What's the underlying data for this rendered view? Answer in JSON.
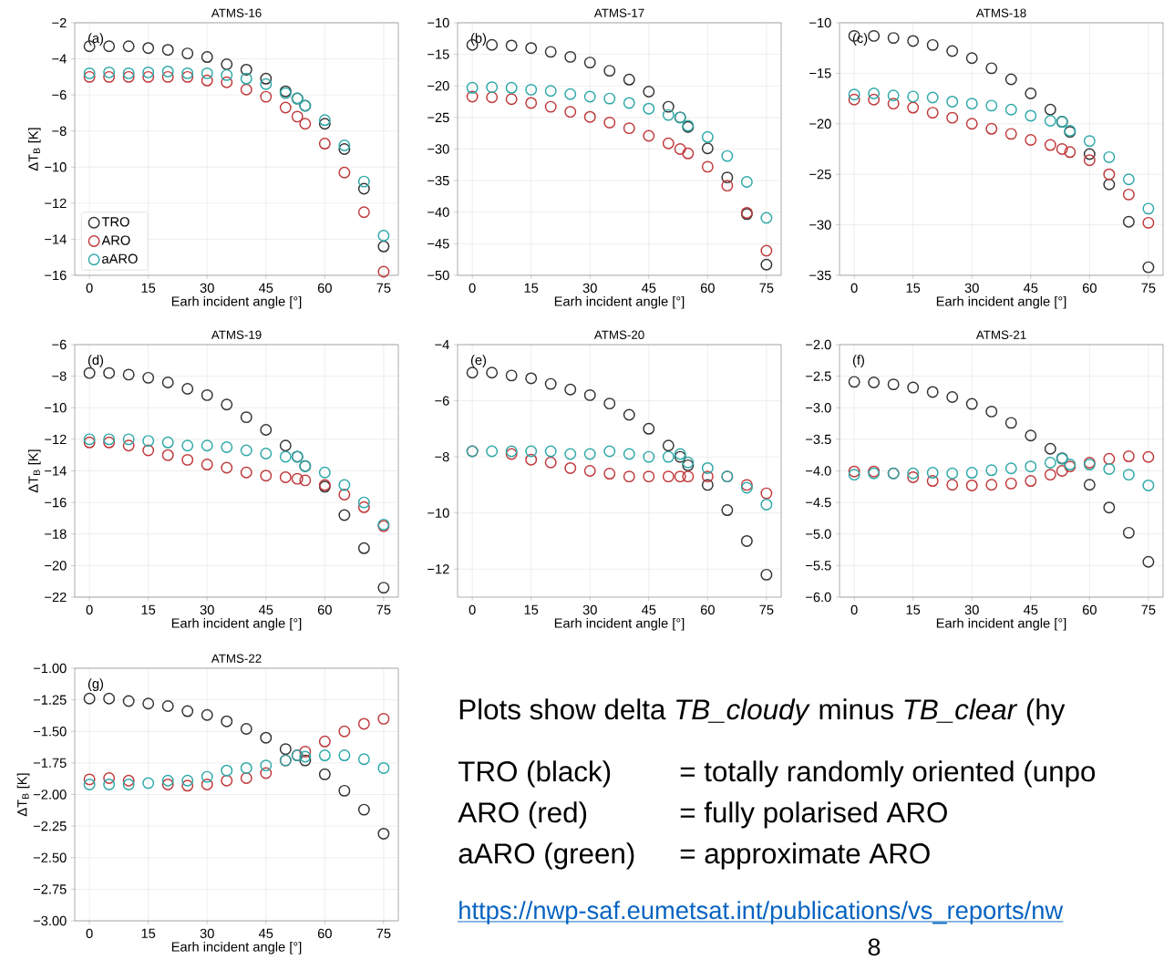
{
  "chart_data": [
    {
      "type": "scatter",
      "title": "ATMS-16",
      "xlabel": "Earh incident angle [°]",
      "ylabel": "ΔT$_{B}$ [K]",
      "marker": "circle",
      "grid": true,
      "legend": "bottom left",
      "annotations": [
        "(a)"
      ],
      "x": [
        0,
        5,
        10,
        15,
        20,
        25,
        30,
        35,
        40,
        45,
        50,
        53,
        55,
        60,
        65,
        70,
        75
      ],
      "xlim": [
        -3.75,
        78.75
      ],
      "xticks": [
        0,
        15,
        30,
        45,
        60,
        75
      ],
      "ylim": [
        -16,
        -2
      ],
      "yticks": [
        {
          "value": -16,
          "label": "−16"
        },
        {
          "value": -14,
          "label": "−14"
        },
        {
          "value": -12,
          "label": "−12"
        },
        {
          "value": -10,
          "label": "−10"
        },
        {
          "value": -8,
          "label": "−8"
        },
        {
          "value": -6,
          "label": "−6"
        },
        {
          "value": -4,
          "label": "−4"
        },
        {
          "value": -2,
          "label": "−2"
        }
      ],
      "series": [
        {
          "name": "TRO",
          "color": "#333333",
          "values": [
            -3.3,
            -3.3,
            -3.3,
            -3.4,
            -3.5,
            -3.7,
            -3.9,
            -4.3,
            -4.6,
            -5.1,
            -5.8,
            -6.2,
            -6.6,
            -7.6,
            -9.0,
            -11.2,
            -14.4
          ]
        },
        {
          "name": "ARO",
          "color": "#c0393b",
          "values": [
            -5.0,
            -5.0,
            -5.0,
            -5.0,
            -5.0,
            -5.0,
            -5.2,
            -5.3,
            -5.7,
            -6.1,
            -6.7,
            -7.2,
            -7.6,
            -8.7,
            -10.3,
            -12.5,
            -15.8
          ]
        },
        {
          "name": "aARO",
          "color": "#2ea8a8",
          "values": [
            -4.8,
            -4.75,
            -4.8,
            -4.75,
            -4.7,
            -4.8,
            -4.8,
            -4.9,
            -5.1,
            -5.4,
            -5.9,
            -6.2,
            -6.6,
            -7.4,
            -8.8,
            -10.8,
            -13.8
          ]
        }
      ]
    },
    {
      "type": "scatter",
      "title": "ATMS-17",
      "xlabel": "Earh incident angle [°]",
      "marker": "circle",
      "grid": true,
      "annotations": [
        "(b)"
      ],
      "x": [
        0,
        5,
        10,
        15,
        20,
        25,
        30,
        35,
        40,
        45,
        50,
        53,
        55,
        60,
        65,
        70,
        75
      ],
      "xlim": [
        -3.75,
        78.75
      ],
      "xticks": [
        0,
        15,
        30,
        45,
        60,
        75
      ],
      "ylim": [
        -50,
        -10
      ],
      "yticks": [
        {
          "value": -50,
          "label": "−50"
        },
        {
          "value": -45,
          "label": "−45"
        },
        {
          "value": -40,
          "label": "−40"
        },
        {
          "value": -35,
          "label": "−35"
        },
        {
          "value": -30,
          "label": "−30"
        },
        {
          "value": -25,
          "label": "−25"
        },
        {
          "value": -20,
          "label": "−20"
        },
        {
          "value": -15,
          "label": "−15"
        },
        {
          "value": -10,
          "label": "−10"
        }
      ],
      "series": [
        {
          "color": "#333333",
          "values": [
            -13.5,
            -13.5,
            -13.6,
            -14.0,
            -14.6,
            -15.4,
            -16.3,
            -17.6,
            -19.0,
            -20.9,
            -23.3,
            -25.0,
            -26.5,
            -29.9,
            -34.5,
            -40.3,
            -48.3
          ]
        },
        {
          "color": "#c0393b",
          "values": [
            -21.7,
            -21.8,
            -22.1,
            -22.7,
            -23.3,
            -24.1,
            -24.9,
            -25.8,
            -26.7,
            -27.9,
            -29.1,
            -30.0,
            -30.7,
            -32.8,
            -35.8,
            -40.1,
            -46.1
          ]
        },
        {
          "color": "#2ea8a8",
          "values": [
            -20.3,
            -20.2,
            -20.3,
            -20.6,
            -20.8,
            -21.3,
            -21.7,
            -22.0,
            -22.7,
            -23.6,
            -24.6,
            -25.0,
            -26.3,
            -28.1,
            -31.1,
            -35.2,
            -40.9
          ]
        }
      ]
    },
    {
      "type": "scatter",
      "title": "ATMS-18",
      "xlabel": "Earh incident angle [°]",
      "marker": "circle",
      "grid": true,
      "annotations": [
        "(c)"
      ],
      "x": [
        0,
        5,
        10,
        15,
        20,
        25,
        30,
        35,
        40,
        45,
        50,
        53,
        55,
        60,
        65,
        70,
        75
      ],
      "xlim": [
        -3.75,
        78.75
      ],
      "xticks": [
        0,
        15,
        30,
        45,
        60,
        75
      ],
      "ylim": [
        -35,
        -10
      ],
      "yticks": [
        {
          "value": -35,
          "label": "−35"
        },
        {
          "value": -30,
          "label": "−30"
        },
        {
          "value": -25,
          "label": "−25"
        },
        {
          "value": -20,
          "label": "−20"
        },
        {
          "value": -15,
          "label": "−15"
        },
        {
          "value": -10,
          "label": "−10"
        }
      ],
      "series": [
        {
          "color": "#333333",
          "values": [
            -11.3,
            -11.3,
            -11.5,
            -11.8,
            -12.2,
            -12.8,
            -13.5,
            -14.5,
            -15.6,
            -17.0,
            -18.6,
            -19.8,
            -20.8,
            -23.0,
            -26.0,
            -29.7,
            -34.2
          ]
        },
        {
          "color": "#c0393b",
          "values": [
            -17.6,
            -17.6,
            -18.0,
            -18.4,
            -18.9,
            -19.4,
            -20.0,
            -20.5,
            -21.0,
            -21.6,
            -22.1,
            -22.5,
            -22.8,
            -23.6,
            -25.0,
            -27.0,
            -29.8
          ]
        },
        {
          "color": "#2ea8a8",
          "values": [
            -17.1,
            -17.0,
            -17.2,
            -17.3,
            -17.4,
            -17.8,
            -18.0,
            -18.2,
            -18.6,
            -19.2,
            -19.7,
            -19.8,
            -20.7,
            -21.7,
            -23.3,
            -25.5,
            -28.4
          ]
        }
      ]
    },
    {
      "type": "scatter",
      "title": "ATMS-19",
      "xlabel": "Earh incident angle [°]",
      "ylabel": "ΔT$_{B}$ [K]",
      "marker": "circle",
      "grid": true,
      "annotations": [
        "(d)"
      ],
      "x": [
        0,
        5,
        10,
        15,
        20,
        25,
        30,
        35,
        40,
        45,
        50,
        53,
        55,
        60,
        65,
        70,
        75
      ],
      "xlim": [
        -3.75,
        78.75
      ],
      "xticks": [
        0,
        15,
        30,
        45,
        60,
        75
      ],
      "ylim": [
        -22,
        -6
      ],
      "yticks": [
        {
          "value": -22,
          "label": "−22"
        },
        {
          "value": -20,
          "label": "−20"
        },
        {
          "value": -18,
          "label": "−18"
        },
        {
          "value": -16,
          "label": "−16"
        },
        {
          "value": -14,
          "label": "−14"
        },
        {
          "value": -12,
          "label": "−12"
        },
        {
          "value": -10,
          "label": "−10"
        },
        {
          "value": -8,
          "label": "−8"
        },
        {
          "value": -6,
          "label": "−6"
        }
      ],
      "series": [
        {
          "color": "#333333",
          "values": [
            -7.8,
            -7.8,
            -7.9,
            -8.1,
            -8.4,
            -8.8,
            -9.2,
            -9.8,
            -10.6,
            -11.4,
            -12.4,
            -13.1,
            -13.7,
            -15.0,
            -16.8,
            -18.9,
            -21.4
          ]
        },
        {
          "color": "#c0393b",
          "values": [
            -12.2,
            -12.2,
            -12.4,
            -12.7,
            -13.0,
            -13.3,
            -13.6,
            -13.8,
            -14.1,
            -14.3,
            -14.4,
            -14.5,
            -14.6,
            -14.9,
            -15.5,
            -16.3,
            -17.5
          ]
        },
        {
          "color": "#2ea8a8",
          "values": [
            -12.0,
            -12.0,
            -12.0,
            -12.1,
            -12.2,
            -12.4,
            -12.4,
            -12.5,
            -12.7,
            -12.9,
            -13.1,
            -13.1,
            -13.7,
            -14.1,
            -14.9,
            -16.0,
            -17.4
          ]
        }
      ]
    },
    {
      "type": "scatter",
      "title": "ATMS-20",
      "xlabel": "Earh incident angle [°]",
      "marker": "circle",
      "grid": true,
      "annotations": [
        "(e)"
      ],
      "x": [
        0,
        5,
        10,
        15,
        20,
        25,
        30,
        35,
        40,
        45,
        50,
        53,
        55,
        60,
        65,
        70,
        75
      ],
      "xlim": [
        -3.75,
        78.75
      ],
      "xticks": [
        0,
        15,
        30,
        45,
        60,
        75
      ],
      "ylim": [
        -13,
        -4
      ],
      "yticks": [
        {
          "value": -12,
          "label": "−12"
        },
        {
          "value": -10,
          "label": "−10"
        },
        {
          "value": -8,
          "label": "−8"
        },
        {
          "value": -6,
          "label": "−6"
        },
        {
          "value": -4,
          "label": "−4"
        }
      ],
      "series": [
        {
          "color": "#333333",
          "values": [
            -5.0,
            -5.0,
            -5.1,
            -5.2,
            -5.4,
            -5.6,
            -5.8,
            -6.1,
            -6.5,
            -7.0,
            -7.6,
            -8.0,
            -8.3,
            -9.0,
            -9.9,
            -11.0,
            -12.2
          ]
        },
        {
          "color": "#c0393b",
          "values": [
            -7.8,
            null,
            -7.9,
            -8.1,
            -8.2,
            -8.4,
            -8.5,
            -8.6,
            -8.7,
            -8.7,
            -8.7,
            -8.7,
            -8.7,
            -8.7,
            -8.7,
            -9.0,
            -9.3
          ]
        },
        {
          "color": "#2ea8a8",
          "values": [
            -7.8,
            -7.8,
            -7.8,
            -7.8,
            -7.8,
            -7.9,
            -7.9,
            -7.8,
            -7.9,
            -8.0,
            -8.0,
            -7.9,
            -8.2,
            -8.4,
            -8.7,
            -9.1,
            -9.7
          ]
        }
      ]
    },
    {
      "type": "scatter",
      "title": "ATMS-21",
      "xlabel": "Earh incident angle [°]",
      "marker": "circle",
      "grid": true,
      "annotations": [
        "(f)"
      ],
      "x": [
        0,
        5,
        10,
        15,
        20,
        25,
        30,
        35,
        40,
        45,
        50,
        53,
        55,
        60,
        65,
        70,
        75
      ],
      "xlim": [
        -3.75,
        78.75
      ],
      "xticks": [
        0,
        15,
        30,
        45,
        60,
        75
      ],
      "ylim": [
        -6,
        -2
      ],
      "yticks": [
        {
          "value": -6,
          "label": "−6.0"
        },
        {
          "value": -5.5,
          "label": "−5.5"
        },
        {
          "value": -5,
          "label": "−5.0"
        },
        {
          "value": -4.5,
          "label": "−4.5"
        },
        {
          "value": -4,
          "label": "−4.0"
        },
        {
          "value": -3.5,
          "label": "−3.5"
        },
        {
          "value": -3,
          "label": "−3.0"
        },
        {
          "value": -2.5,
          "label": "−2.5"
        },
        {
          "value": -2,
          "label": "−2.0"
        }
      ],
      "series": [
        {
          "color": "#333333",
          "values": [
            -2.59,
            -2.6,
            -2.63,
            -2.68,
            -2.75,
            -2.83,
            -2.94,
            -3.06,
            -3.24,
            -3.44,
            -3.65,
            -3.8,
            null,
            -4.22,
            -4.58,
            -4.98,
            -5.44
          ]
        },
        {
          "color": "#c0393b",
          "values": [
            -4.01,
            -4.01,
            -4.04,
            -4.1,
            -4.16,
            -4.22,
            -4.23,
            -4.22,
            -4.2,
            -4.16,
            -4.06,
            -4.0,
            -3.93,
            -3.87,
            -3.81,
            -3.77,
            -3.78
          ]
        },
        {
          "color": "#2ea8a8",
          "values": [
            -4.06,
            -4.04,
            -4.04,
            -4.04,
            -4.03,
            -4.04,
            -4.03,
            -3.99,
            -3.96,
            -3.93,
            -3.87,
            -3.81,
            -3.9,
            -3.9,
            -3.97,
            -4.06,
            -4.23
          ]
        }
      ]
    },
    {
      "type": "scatter",
      "title": "ATMS-22",
      "xlabel": "Earh incident angle [°]",
      "ylabel": "ΔT$_{B}$ [K]",
      "marker": "circle",
      "grid": true,
      "annotations": [
        "(g)"
      ],
      "x": [
        0,
        5,
        10,
        15,
        20,
        25,
        30,
        35,
        40,
        45,
        50,
        53,
        55,
        60,
        65,
        70,
        75
      ],
      "xlim": [
        -3.75,
        78.75
      ],
      "xticks": [
        0,
        15,
        30,
        45,
        60,
        75
      ],
      "ylim": [
        -3,
        -1
      ],
      "yticks": [
        {
          "value": -3,
          "label": "−3.00"
        },
        {
          "value": -2.75,
          "label": "−2.75"
        },
        {
          "value": -2.5,
          "label": "−2.50"
        },
        {
          "value": -2.25,
          "label": "−2.25"
        },
        {
          "value": -2,
          "label": "−2.00"
        },
        {
          "value": -1.75,
          "label": "−1.75"
        },
        {
          "value": -1.5,
          "label": "−1.50"
        },
        {
          "value": -1.25,
          "label": "−1.25"
        },
        {
          "value": -1,
          "label": "−1.00"
        }
      ],
      "series": [
        {
          "color": "#333333",
          "values": [
            -1.24,
            -1.24,
            -1.26,
            -1.28,
            -1.3,
            -1.34,
            -1.37,
            -1.42,
            -1.48,
            -1.55,
            -1.64,
            null,
            -1.73,
            -1.84,
            -1.97,
            -2.12,
            -2.31
          ]
        },
        {
          "color": "#c0393b",
          "values": [
            -1.88,
            -1.87,
            -1.89,
            null,
            -1.92,
            -1.93,
            -1.92,
            -1.89,
            -1.87,
            -1.83,
            -1.73,
            -1.69,
            -1.66,
            -1.58,
            -1.5,
            -1.44,
            -1.4
          ]
        },
        {
          "color": "#2ea8a8",
          "values": [
            -1.92,
            -1.92,
            -1.92,
            -1.91,
            -1.89,
            -1.89,
            -1.86,
            -1.81,
            -1.79,
            -1.77,
            -1.73,
            -1.69,
            -1.7,
            -1.69,
            -1.69,
            -1.72,
            -1.79
          ]
        }
      ]
    },
    {
      "type": "other",
      "title": "Plots show delta *TB_cloudy* minus *TB_clear* (hy",
      "annotations": [
        "TRO (black)",
        "= totally randomly oriented (unpo",
        "ARO (red)",
        "= fully polarised ARO",
        "aARO (green)",
        "= approximate ARO",
        "https://nwp-saf.eumetsat.int/publications/vs_reports/nw",
        "8"
      ]
    }
  ]
}
